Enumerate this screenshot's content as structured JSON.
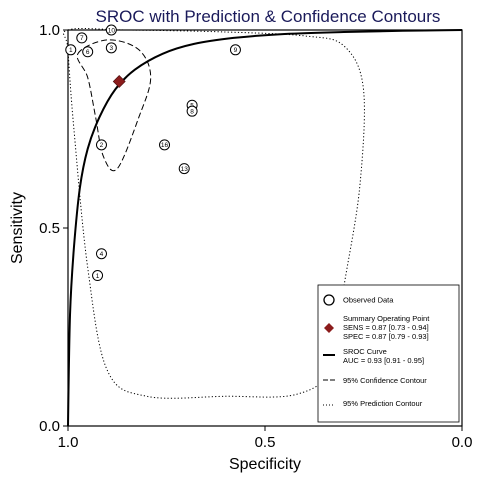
{
  "chart_data": {
    "type": "scatter",
    "title": "SROC with Prediction & Confidence Contours",
    "xlabel": "Specificity",
    "ylabel": "Sensitivity",
    "x_axis_reversed": true,
    "xlim": [
      1.0,
      0.0
    ],
    "ylim": [
      0.0,
      1.0
    ],
    "x_ticks": [
      "1.0",
      "0.5",
      "0.0"
    ],
    "y_ticks": [
      "0.0",
      "0.5",
      "1.0"
    ],
    "grid": false,
    "legend_position": "bottom-right",
    "observed_data": [
      {
        "label": "1",
        "specificity": 0.993,
        "sensitivity": 0.95
      },
      {
        "label": "7",
        "specificity": 0.965,
        "sensitivity": 0.98
      },
      {
        "label": "6",
        "specificity": 0.95,
        "sensitivity": 0.945
      },
      {
        "label": "10",
        "specificity": 0.89,
        "sensitivity": 1.0
      },
      {
        "label": "3",
        "specificity": 0.89,
        "sensitivity": 0.955
      },
      {
        "label": "9",
        "specificity": 0.575,
        "sensitivity": 0.95
      },
      {
        "label": "2",
        "specificity": 0.915,
        "sensitivity": 0.71
      },
      {
        "label": "5",
        "specificity": 0.685,
        "sensitivity": 0.81
      },
      {
        "label": "8",
        "specificity": 0.685,
        "sensitivity": 0.795
      },
      {
        "label": "16",
        "specificity": 0.755,
        "sensitivity": 0.71
      },
      {
        "label": "13",
        "specificity": 0.705,
        "sensitivity": 0.65
      },
      {
        "label": "4",
        "specificity": 0.915,
        "sensitivity": 0.435
      },
      {
        "label": "1",
        "specificity": 0.925,
        "sensitivity": 0.38
      }
    ],
    "summary_point": {
      "specificity": 0.87,
      "sensitivity": 0.87,
      "color": "#8b1c1c"
    },
    "legend": [
      {
        "symbol": "circle",
        "lines": [
          "Observed Data"
        ]
      },
      {
        "symbol": "diamond",
        "lines": [
          "Summary Operating Point",
          "SENS = 0.87 [0.73 - 0.94]",
          "SPEC = 0.87 [0.79 - 0.93]"
        ]
      },
      {
        "symbol": "solid-line",
        "lines": [
          "SROC Curve",
          "AUC = 0.93 [0.91 - 0.95]"
        ]
      },
      {
        "symbol": "dashed-line",
        "lines": [
          "95% Confidence Contour"
        ]
      },
      {
        "symbol": "dotted-line",
        "lines": [
          "95% Prediction Contour"
        ]
      }
    ],
    "sroc_curve": [
      [
        1.0,
        0.0
      ],
      [
        0.995,
        0.28
      ],
      [
        0.985,
        0.45
      ],
      [
        0.97,
        0.6
      ],
      [
        0.95,
        0.7
      ],
      [
        0.92,
        0.78
      ],
      [
        0.88,
        0.85
      ],
      [
        0.83,
        0.9
      ],
      [
        0.76,
        0.94
      ],
      [
        0.68,
        0.965
      ],
      [
        0.58,
        0.98
      ],
      [
        0.45,
        0.99
      ],
      [
        0.3,
        0.995
      ],
      [
        0.15,
        0.998
      ],
      [
        0.0,
        1.0
      ]
    ],
    "confidence_contour": [
      [
        0.975,
        0.94
      ],
      [
        0.9,
        0.975
      ],
      [
        0.82,
        0.95
      ],
      [
        0.79,
        0.88
      ],
      [
        0.82,
        0.78
      ],
      [
        0.875,
        0.65
      ],
      [
        0.91,
        0.68
      ],
      [
        0.93,
        0.78
      ],
      [
        0.95,
        0.88
      ]
    ],
    "prediction_contour": [
      [
        1.0,
        1.0
      ],
      [
        0.85,
        1.0
      ],
      [
        0.6,
        0.995
      ],
      [
        0.4,
        0.985
      ],
      [
        0.3,
        0.96
      ],
      [
        0.25,
        0.85
      ],
      [
        0.26,
        0.6
      ],
      [
        0.3,
        0.35
      ],
      [
        0.33,
        0.15
      ],
      [
        0.42,
        0.08
      ],
      [
        0.6,
        0.075
      ],
      [
        0.8,
        0.075
      ],
      [
        0.9,
        0.14
      ],
      [
        0.95,
        0.4
      ],
      [
        0.985,
        0.75
      ],
      [
        1.0,
        0.95
      ]
    ]
  }
}
